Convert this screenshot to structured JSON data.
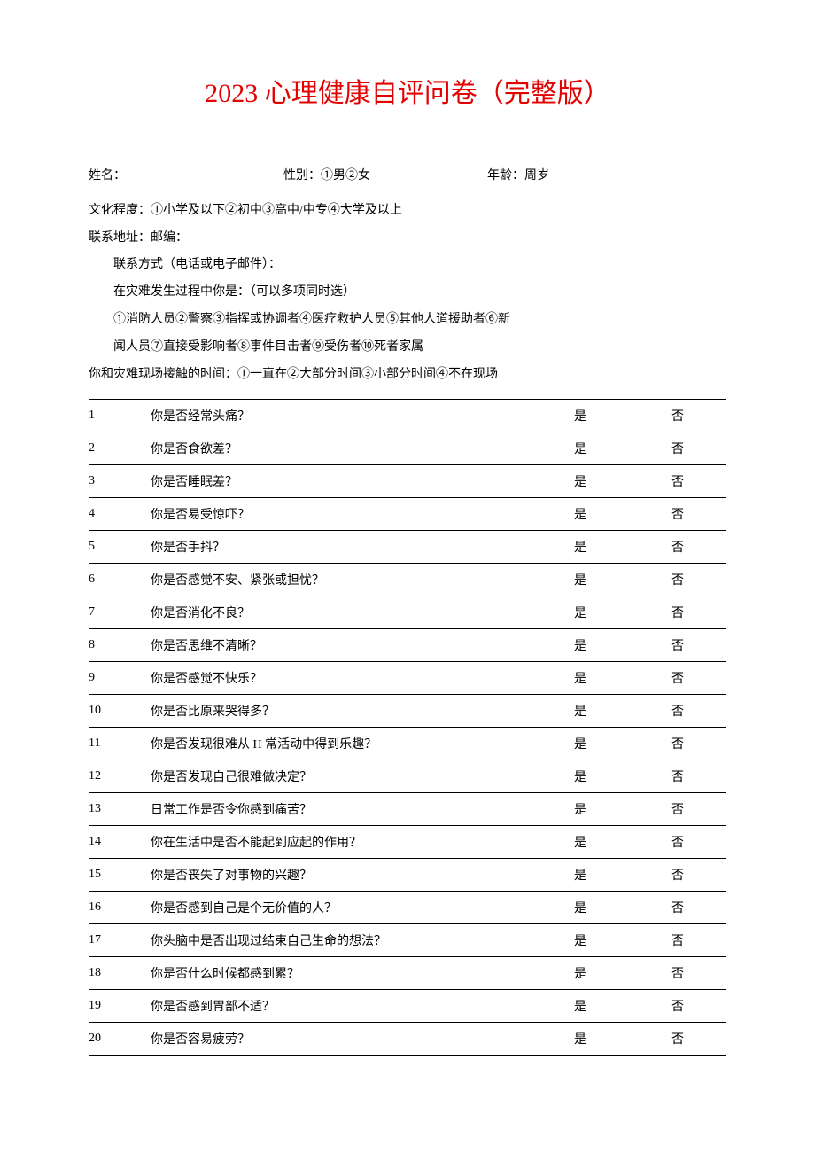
{
  "title": "2023 心理健康自评问卷（完整版）",
  "form": {
    "name_label": "姓名：",
    "gender_label": "性别：①男②女",
    "age_label": "年龄：周岁",
    "education_label": "文化程度：①小学及以下②初中③高中/中专④大学及以上",
    "address_label": "联系地址：邮编：",
    "contact_label": "联系方式（电话或电子邮件）：",
    "disaster_role_label": "在灾难发生过程中你是：（可以多项同时选）",
    "disaster_role_options1": "①消防人员②警察③指挥或协调者④医疗救护人员⑤其他人道援助者⑥新",
    "disaster_role_options2": "闻人员⑦直接受影响者⑧事件目击者⑨受伤者⑩死者家属",
    "disaster_contact_label": "你和灾难现场接触的时间：①一直在②大部分时间③小部分时间④不在现场"
  },
  "answer_yes": "是",
  "answer_no": "否",
  "questions": [
    {
      "num": "1",
      "text": "你是否经常头痛？"
    },
    {
      "num": "2",
      "text": "你是否食欲差？"
    },
    {
      "num": "3",
      "text": "你是否睡眠差？"
    },
    {
      "num": "4",
      "text": "你是否易受惊吓？"
    },
    {
      "num": "5",
      "text": "你是否手抖？"
    },
    {
      "num": "6",
      "text": "你是否感觉不安、紧张或担忧？"
    },
    {
      "num": "7",
      "text": "你是否消化不良？"
    },
    {
      "num": "8",
      "text": "你是否思维不清晰？"
    },
    {
      "num": "9",
      "text": "你是否感觉不快乐？"
    },
    {
      "num": "10",
      "text": "你是否比原来哭得多？"
    },
    {
      "num": "11",
      "text": "你是否发现很难从 H 常活动中得到乐趣？"
    },
    {
      "num": "12",
      "text": "你是否发现自己很难做决定？"
    },
    {
      "num": "13",
      "text": "日常工作是否令你感到痛苦？"
    },
    {
      "num": "14",
      "text": "你在生活中是否不能起到应起的作用？"
    },
    {
      "num": "15",
      "text": "你是否丧失了对事物的兴趣？"
    },
    {
      "num": "16",
      "text": "你是否感到自己是个无价值的人？"
    },
    {
      "num": "17",
      "text": "你头脑中是否出现过结束自己生命的想法？"
    },
    {
      "num": "18",
      "text": "你是否什么时候都感到累？"
    },
    {
      "num": "19",
      "text": "你是否感到胃部不适？"
    },
    {
      "num": "20",
      "text": "你是否容易疲劳？"
    }
  ],
  "colors": {
    "title": "#e30000",
    "text": "#000000",
    "background": "#ffffff",
    "border": "#000000"
  },
  "typography": {
    "title_fontsize": 30,
    "body_fontsize": 14,
    "font_family": "SimSun"
  }
}
